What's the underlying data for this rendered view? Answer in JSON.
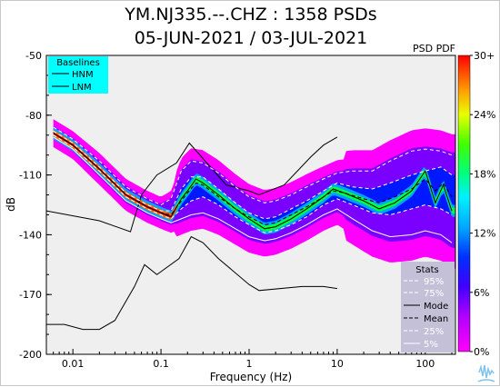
{
  "header": {
    "title": "YM.NJ335.--.CHZ : 1358 PSDs",
    "subtitle": "05-JUN-2021 / 03-JUL-2021"
  },
  "chart_data": {
    "type": "heatmap",
    "x_scale": "log",
    "xlabel": "Frequency (Hz)",
    "ylabel": "dB",
    "xlim": [
      0.005,
      220
    ],
    "ylim": [
      -200,
      -50
    ],
    "x_ticks": [
      0.01,
      0.1,
      1,
      10,
      100
    ],
    "x_tick_labels": [
      "0.01",
      "0.1",
      "1",
      "10",
      "100"
    ],
    "y_ticks": [
      -50,
      -80,
      -110,
      -140,
      -170,
      -200
    ],
    "y_tick_labels": [
      "-50",
      "-80",
      "-110",
      "-140",
      "-170",
      "-200"
    ],
    "background_color": "#efefef",
    "grid": false,
    "colorbar": {
      "label": "PSD PDF",
      "ticks": [
        "30+",
        "24%",
        "18%",
        "12%",
        "6%",
        "0%"
      ],
      "colors": [
        "#ff00ff",
        "#7a00ff",
        "#0018ff",
        "#00b0ff",
        "#00ffd0",
        "#00ff40",
        "#c8ff00",
        "#ffe000",
        "#ff7000",
        "#ff0000"
      ]
    },
    "baselines_legend": {
      "title": "Baselines",
      "entries": [
        "HNM",
        "LNM"
      ],
      "placement": "top-left",
      "background": "#00ffff"
    },
    "stats_legend": {
      "title": "Stats",
      "entries": [
        "95%",
        "75%",
        "Mode",
        "Mean",
        "25%",
        "5%"
      ],
      "placement": "bottom-right",
      "background": "#c4c0d8"
    },
    "series": [
      {
        "name": "HNM",
        "color": "#000000",
        "points": [
          [
            0.005,
            -128
          ],
          [
            0.02,
            -133
          ],
          [
            0.045,
            -138.5
          ],
          [
            0.06,
            -120
          ],
          [
            0.09,
            -110
          ],
          [
            0.15,
            -104
          ],
          [
            0.21,
            -94
          ],
          [
            0.55,
            -115
          ],
          [
            1.0,
            -118
          ],
          [
            1.3,
            -120
          ],
          [
            2.5,
            -115
          ],
          [
            5.0,
            -101
          ],
          [
            7.0,
            -95
          ],
          [
            10.0,
            -91
          ]
        ]
      },
      {
        "name": "LNM",
        "color": "#000000",
        "points": [
          [
            0.005,
            -185
          ],
          [
            0.008,
            -185
          ],
          [
            0.013,
            -187.5
          ],
          [
            0.02,
            -187.5
          ],
          [
            0.03,
            -183
          ],
          [
            0.05,
            -166
          ],
          [
            0.065,
            -155
          ],
          [
            0.09,
            -160
          ],
          [
            0.16,
            -152
          ],
          [
            0.22,
            -141
          ],
          [
            0.3,
            -144
          ],
          [
            0.45,
            -152
          ],
          [
            1.0,
            -165
          ],
          [
            1.3,
            -168
          ],
          [
            4.0,
            -166
          ],
          [
            7.0,
            -166
          ],
          [
            10.0,
            -167
          ]
        ]
      },
      {
        "name": "Mode",
        "color": "#000000",
        "points": [
          [
            0.006,
            -89
          ],
          [
            0.01,
            -95
          ],
          [
            0.02,
            -107
          ],
          [
            0.04,
            -120
          ],
          [
            0.07,
            -126
          ],
          [
            0.1,
            -129
          ],
          [
            0.13,
            -131
          ],
          [
            0.17,
            -122
          ],
          [
            0.2,
            -118
          ],
          [
            0.25,
            -112
          ],
          [
            0.3,
            -114
          ],
          [
            0.45,
            -120
          ],
          [
            0.7,
            -127
          ],
          [
            1.0,
            -132
          ],
          [
            1.5,
            -137
          ],
          [
            2.0,
            -136
          ],
          [
            3.0,
            -132
          ],
          [
            4.5,
            -127
          ],
          [
            7.0,
            -121
          ],
          [
            9.0,
            -117
          ],
          [
            12.0,
            -119
          ],
          [
            20.0,
            -123
          ],
          [
            30.0,
            -127
          ],
          [
            45.0,
            -124
          ],
          [
            70.0,
            -118
          ],
          [
            100.0,
            -108
          ],
          [
            130.0,
            -124
          ],
          [
            160.0,
            -115
          ],
          [
            200.0,
            -128
          ]
        ]
      },
      {
        "name": "Mean",
        "color": "#000000",
        "dash": true,
        "points": [
          [
            0.006,
            -89
          ],
          [
            0.01,
            -95
          ],
          [
            0.02,
            -107
          ],
          [
            0.04,
            -120
          ],
          [
            0.07,
            -126
          ],
          [
            0.1,
            -129
          ],
          [
            0.13,
            -130
          ],
          [
            0.17,
            -123
          ],
          [
            0.2,
            -119
          ],
          [
            0.25,
            -114
          ],
          [
            0.3,
            -115
          ],
          [
            0.45,
            -121
          ],
          [
            0.7,
            -127
          ],
          [
            1.0,
            -131
          ],
          [
            1.5,
            -135
          ],
          [
            2.0,
            -134
          ],
          [
            3.0,
            -130
          ],
          [
            4.5,
            -126
          ],
          [
            7.0,
            -121
          ],
          [
            9.0,
            -118
          ],
          [
            12.0,
            -119
          ],
          [
            20.0,
            -122
          ],
          [
            30.0,
            -124
          ],
          [
            45.0,
            -121
          ],
          [
            70.0,
            -117
          ],
          [
            100.0,
            -112
          ],
          [
            130.0,
            -118
          ],
          [
            160.0,
            -114
          ],
          [
            200.0,
            -121
          ]
        ]
      },
      {
        "name": "95%",
        "color": "#ffffff",
        "dash": true,
        "points": [
          [
            0.006,
            -86
          ],
          [
            0.01,
            -92
          ],
          [
            0.02,
            -103
          ],
          [
            0.04,
            -116
          ],
          [
            0.07,
            -122
          ],
          [
            0.1,
            -125
          ],
          [
            0.13,
            -122
          ],
          [
            0.17,
            -108
          ],
          [
            0.22,
            -103
          ],
          [
            0.3,
            -104
          ],
          [
            0.45,
            -109
          ],
          [
            0.7,
            -116
          ],
          [
            1.0,
            -121
          ],
          [
            1.5,
            -124
          ],
          [
            2.0,
            -123
          ],
          [
            3.0,
            -120
          ],
          [
            4.5,
            -116
          ],
          [
            7.0,
            -112
          ],
          [
            10.0,
            -109
          ],
          [
            15.0,
            -108
          ],
          [
            25.0,
            -108
          ],
          [
            40.0,
            -103
          ],
          [
            70.0,
            -98
          ],
          [
            100.0,
            -97
          ],
          [
            150.0,
            -98
          ],
          [
            200.0,
            -100
          ]
        ]
      },
      {
        "name": "75%",
        "color": "#ffffff",
        "dash": true,
        "points": [
          [
            0.006,
            -88
          ],
          [
            0.01,
            -94
          ],
          [
            0.02,
            -106
          ],
          [
            0.04,
            -119
          ],
          [
            0.07,
            -125
          ],
          [
            0.1,
            -128
          ],
          [
            0.13,
            -128
          ],
          [
            0.17,
            -117
          ],
          [
            0.22,
            -111
          ],
          [
            0.3,
            -111
          ],
          [
            0.45,
            -117
          ],
          [
            0.7,
            -124
          ],
          [
            1.0,
            -129
          ],
          [
            1.5,
            -132
          ],
          [
            2.0,
            -131
          ],
          [
            3.0,
            -127
          ],
          [
            4.5,
            -123
          ],
          [
            7.0,
            -118
          ],
          [
            10.0,
            -114
          ],
          [
            15.0,
            -116
          ],
          [
            25.0,
            -117
          ],
          [
            40.0,
            -114
          ],
          [
            70.0,
            -110
          ],
          [
            100.0,
            -108
          ],
          [
            150.0,
            -106
          ],
          [
            200.0,
            -110
          ]
        ]
      },
      {
        "name": "25%",
        "color": "#ffffff",
        "dash": true,
        "points": [
          [
            0.006,
            -90
          ],
          [
            0.01,
            -96
          ],
          [
            0.02,
            -108
          ],
          [
            0.04,
            -121
          ],
          [
            0.07,
            -127
          ],
          [
            0.1,
            -130
          ],
          [
            0.13,
            -132
          ],
          [
            0.17,
            -127
          ],
          [
            0.22,
            -123
          ],
          [
            0.3,
            -121
          ],
          [
            0.45,
            -125
          ],
          [
            0.7,
            -131
          ],
          [
            1.0,
            -135
          ],
          [
            1.5,
            -139
          ],
          [
            2.0,
            -138
          ],
          [
            3.0,
            -135
          ],
          [
            4.5,
            -131
          ],
          [
            7.0,
            -125
          ],
          [
            10.0,
            -122
          ],
          [
            15.0,
            -125
          ],
          [
            25.0,
            -129
          ],
          [
            40.0,
            -130
          ],
          [
            70.0,
            -127
          ],
          [
            100.0,
            -125
          ],
          [
            150.0,
            -127
          ],
          [
            200.0,
            -130
          ]
        ]
      },
      {
        "name": "5%",
        "color": "#ffffff",
        "dash": false,
        "points": [
          [
            0.006,
            -91
          ],
          [
            0.01,
            -97
          ],
          [
            0.02,
            -110
          ],
          [
            0.04,
            -123
          ],
          [
            0.07,
            -129
          ],
          [
            0.1,
            -132
          ],
          [
            0.13,
            -134
          ],
          [
            0.17,
            -132
          ],
          [
            0.22,
            -130
          ],
          [
            0.3,
            -129
          ],
          [
            0.45,
            -132
          ],
          [
            0.7,
            -137
          ],
          [
            1.0,
            -141
          ],
          [
            1.5,
            -143
          ],
          [
            2.0,
            -142
          ],
          [
            3.0,
            -139
          ],
          [
            4.5,
            -135
          ],
          [
            7.0,
            -130
          ],
          [
            10.0,
            -127
          ],
          [
            15.0,
            -132
          ],
          [
            25.0,
            -138
          ],
          [
            40.0,
            -141
          ],
          [
            70.0,
            -140
          ],
          [
            100.0,
            -138
          ],
          [
            150.0,
            -140
          ],
          [
            200.0,
            -144
          ]
        ]
      }
    ]
  }
}
